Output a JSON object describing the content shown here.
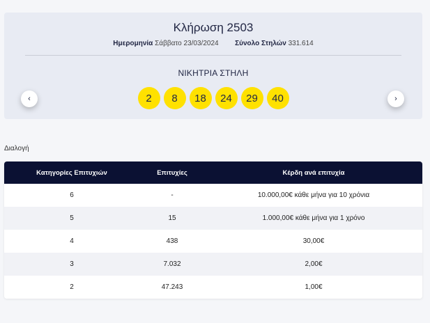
{
  "draw": {
    "title": "Κλήρωση 2503",
    "date_label": "Ημερομηνία",
    "date_value": "Σάββατο 23/03/2024",
    "columns_label": "Σύνολο Στηλών",
    "columns_value": "331.614",
    "winning_label": "ΝΙΚΗΤΡΙΑ ΣΤΗΛΗ",
    "numbers": [
      "2",
      "8",
      "18",
      "24",
      "29",
      "40"
    ],
    "prev_label": "‹",
    "next_label": "›",
    "ball_color": "#ffe100"
  },
  "section_label": "Διαλογή",
  "table": {
    "headers": [
      "Κατηγορίες Επιτυχιών",
      "Επιτυχίες",
      "Κέρδη ανά επιτυχία"
    ],
    "rows": [
      [
        "6",
        "-",
        "10.000,00€ κάθε μήνα για 10 χρόνια"
      ],
      [
        "5",
        "15",
        "1.000,00€ κάθε μήνα για 1 χρόνο"
      ],
      [
        "4",
        "438",
        "30,00€"
      ],
      [
        "3",
        "7.032",
        "2,00€"
      ],
      [
        "2",
        "47.243",
        "1,00€"
      ]
    ],
    "header_color": "#0b1133"
  }
}
